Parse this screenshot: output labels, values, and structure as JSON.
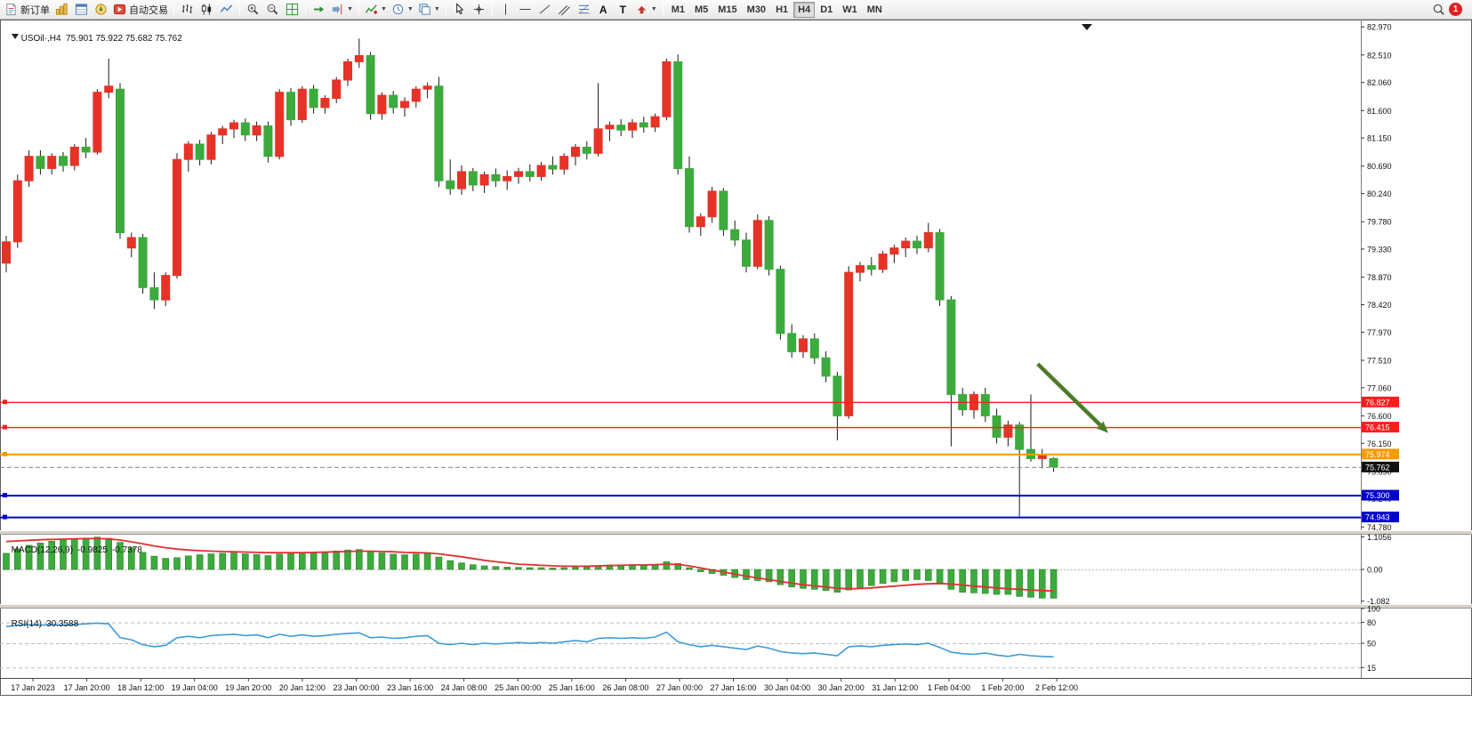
{
  "toolbar": {
    "new_order": "新订单",
    "auto_trading": "自动交易",
    "text_tool": "A",
    "label_tool": "T",
    "timeframes": [
      "M1",
      "M5",
      "M15",
      "M30",
      "H1",
      "H4",
      "D1",
      "W1",
      "MN"
    ],
    "active_timeframe": "H4",
    "notification_count": "1"
  },
  "chart": {
    "title": "USOil·,H4  75.901 75.922 75.682 75.762"
  },
  "indicators": {
    "macd": {
      "name": "MACD(12,26,9)",
      "value_main": "-0.9825",
      "value_signal": "-0.7378",
      "histogram_color": "#3daa3d",
      "signal_color": "#e03030",
      "scale": [
        {
          "text": "1.1056",
          "value": 1.1056
        },
        {
          "text": "0.00",
          "value": 0
        },
        {
          "text": "-1.082",
          "value": -1.082
        }
      ],
      "histogram": [
        0.55,
        0.7,
        0.82,
        0.9,
        0.96,
        1.0,
        1.04,
        1.07,
        1.1,
        1.06,
        0.92,
        0.74,
        0.58,
        0.45,
        0.38,
        0.4,
        0.46,
        0.5,
        0.53,
        0.55,
        0.56,
        0.53,
        0.51,
        0.47,
        0.52,
        0.54,
        0.56,
        0.56,
        0.59,
        0.63,
        0.66,
        0.68,
        0.61,
        0.56,
        0.52,
        0.5,
        0.52,
        0.54,
        0.42,
        0.3,
        0.22,
        0.16,
        0.12,
        0.1,
        0.08,
        0.07,
        0.06,
        0.06,
        0.05,
        0.06,
        0.08,
        0.08,
        0.12,
        0.15,
        0.15,
        0.16,
        0.15,
        0.17,
        0.26,
        0.2,
        0.06,
        -0.08,
        -0.14,
        -0.2,
        -0.28,
        -0.35,
        -0.38,
        -0.42,
        -0.52,
        -0.6,
        -0.65,
        -0.68,
        -0.72,
        -0.78,
        -0.7,
        -0.62,
        -0.55,
        -0.48,
        -0.42,
        -0.38,
        -0.35,
        -0.38,
        -0.5,
        -0.68,
        -0.78,
        -0.8,
        -0.82,
        -0.85,
        -0.85,
        -0.92,
        -0.95,
        -0.98,
        -0.9825
      ],
      "signal": [
        0.95,
        0.97,
        0.99,
        1.01,
        1.02,
        1.03,
        1.04,
        1.05,
        1.05,
        1.04,
        1.0,
        0.94,
        0.87,
        0.8,
        0.74,
        0.69,
        0.66,
        0.64,
        0.62,
        0.61,
        0.6,
        0.59,
        0.58,
        0.57,
        0.57,
        0.57,
        0.57,
        0.58,
        0.59,
        0.6,
        0.61,
        0.62,
        0.62,
        0.61,
        0.6,
        0.58,
        0.57,
        0.56,
        0.53,
        0.48,
        0.43,
        0.37,
        0.31,
        0.26,
        0.22,
        0.18,
        0.16,
        0.14,
        0.12,
        0.11,
        0.11,
        0.11,
        0.12,
        0.13,
        0.14,
        0.15,
        0.15,
        0.16,
        0.18,
        0.17,
        0.12,
        0.05,
        -0.02,
        -0.09,
        -0.16,
        -0.23,
        -0.29,
        -0.35,
        -0.41,
        -0.47,
        -0.52,
        -0.56,
        -0.6,
        -0.64,
        -0.66,
        -0.65,
        -0.63,
        -0.6,
        -0.57,
        -0.54,
        -0.51,
        -0.49,
        -0.48,
        -0.5,
        -0.53,
        -0.57,
        -0.6,
        -0.63,
        -0.66,
        -0.68,
        -0.7,
        -0.72,
        -0.7378
      ]
    },
    "rsi": {
      "name": "RSI(14)",
      "value": "30.3588",
      "line_color": "#3e9ad6",
      "scale": [
        {
          "text": "100",
          "value": 100
        },
        {
          "text": "80",
          "value": 80
        },
        {
          "text": "50",
          "value": 50
        },
        {
          "text": "15",
          "value": 15
        }
      ],
      "levels": [
        80,
        50,
        15
      ],
      "values": [
        74,
        76,
        77,
        76,
        77,
        76,
        77,
        78,
        79,
        78,
        58,
        55,
        48,
        45,
        47,
        58,
        60,
        58,
        61,
        62,
        63,
        61,
        62,
        58,
        63,
        60,
        62,
        60,
        61,
        63,
        64,
        65,
        58,
        59,
        57,
        58,
        60,
        61,
        50,
        48,
        50,
        48,
        50,
        49,
        50,
        51,
        50,
        51,
        50,
        52,
        54,
        52,
        57,
        58,
        57,
        58,
        57,
        59,
        66,
        52,
        48,
        45,
        47,
        45,
        43,
        41,
        46,
        43,
        38,
        36,
        35,
        36,
        34,
        32,
        45,
        46,
        45,
        47,
        48,
        49,
        48,
        50,
        44,
        37,
        35,
        34,
        36,
        33,
        31,
        34,
        32,
        31,
        30.36
      ]
    }
  },
  "chart_data": {
    "type": "candlestick",
    "symbol": "USOil",
    "timeframe": "H4",
    "bull_color": "#e73327",
    "bear_color": "#3caa3c",
    "wick_color": "#1a1a1a",
    "price_axis": {
      "ticks": [
        82.97,
        82.51,
        82.06,
        81.6,
        81.15,
        80.69,
        80.24,
        79.78,
        79.33,
        78.87,
        78.42,
        77.97,
        77.51,
        77.06,
        76.6,
        76.15,
        75.69,
        75.24,
        74.78
      ]
    },
    "levels": [
      {
        "label": "76.827",
        "price": 76.827,
        "color": "#fe1d1d",
        "box": "#fe1d1d",
        "width": 1.4,
        "style": "solid"
      },
      {
        "label": "76.415",
        "price": 76.415,
        "color": "#fe1d1d",
        "box": "#fe1d1d",
        "width": 1.4,
        "style": "solid"
      },
      {
        "label": "75.974",
        "price": 75.974,
        "color": "#f59b00",
        "box": "#f59b00",
        "width": 2,
        "style": "solid"
      },
      {
        "label": "75.762",
        "price": 75.762,
        "color": "#888888",
        "box": "#111111",
        "width": 1,
        "style": "dashed",
        "handle": false
      },
      {
        "label": "75.300",
        "price": 75.3,
        "color": "#0000cd",
        "box": "#0000cd",
        "width": 2,
        "style": "solid"
      },
      {
        "label": "74.943",
        "price": 74.943,
        "color": "#0000cd",
        "box": "#0000cd",
        "width": 2,
        "style": "solid"
      }
    ],
    "annotation_arrow": {
      "from_x_index": 90.6,
      "from_price": 77.45,
      "to_x_index": 96.8,
      "to_price": 76.32,
      "color": "#4e7b28"
    },
    "ohlc": [
      [
        79.1,
        79.55,
        78.95,
        79.45
      ],
      [
        79.45,
        80.55,
        79.35,
        80.45
      ],
      [
        80.45,
        80.95,
        80.35,
        80.85
      ],
      [
        80.85,
        80.95,
        80.55,
        80.65
      ],
      [
        80.65,
        80.9,
        80.55,
        80.85
      ],
      [
        80.85,
        80.92,
        80.6,
        80.7
      ],
      [
        80.7,
        81.05,
        80.62,
        81.0
      ],
      [
        81.0,
        81.15,
        80.82,
        80.92
      ],
      [
        80.92,
        81.95,
        80.88,
        81.9
      ],
      [
        81.9,
        82.45,
        81.8,
        82.0
      ],
      [
        81.95,
        82.05,
        79.5,
        79.6
      ],
      [
        79.35,
        79.6,
        79.2,
        79.52
      ],
      [
        79.52,
        79.58,
        78.6,
        78.7
      ],
      [
        78.7,
        78.95,
        78.35,
        78.5
      ],
      [
        78.5,
        78.95,
        78.4,
        78.9
      ],
      [
        78.9,
        80.9,
        78.85,
        80.8
      ],
      [
        80.8,
        81.1,
        80.6,
        81.05
      ],
      [
        81.05,
        81.12,
        80.7,
        80.8
      ],
      [
        80.8,
        81.25,
        80.72,
        81.2
      ],
      [
        81.2,
        81.35,
        81.05,
        81.3
      ],
      [
        81.3,
        81.45,
        81.15,
        81.4
      ],
      [
        81.4,
        81.47,
        81.1,
        81.2
      ],
      [
        81.2,
        81.42,
        81.1,
        81.35
      ],
      [
        81.35,
        81.42,
        80.75,
        80.85
      ],
      [
        80.85,
        81.95,
        80.8,
        81.9
      ],
      [
        81.9,
        81.97,
        81.35,
        81.45
      ],
      [
        81.45,
        82.0,
        81.4,
        81.95
      ],
      [
        81.95,
        82.02,
        81.55,
        81.65
      ],
      [
        81.65,
        81.85,
        81.55,
        81.8
      ],
      [
        81.8,
        82.15,
        81.72,
        82.1
      ],
      [
        82.1,
        82.45,
        82.0,
        82.4
      ],
      [
        82.4,
        82.78,
        82.3,
        82.5
      ],
      [
        82.5,
        82.56,
        81.45,
        81.55
      ],
      [
        81.55,
        81.9,
        81.45,
        81.85
      ],
      [
        81.85,
        81.92,
        81.55,
        81.65
      ],
      [
        81.65,
        81.82,
        81.5,
        81.75
      ],
      [
        81.75,
        82.0,
        81.65,
        81.95
      ],
      [
        81.95,
        82.06,
        81.8,
        82.0
      ],
      [
        82.0,
        82.15,
        80.35,
        80.45
      ],
      [
        80.45,
        80.8,
        80.22,
        80.32
      ],
      [
        80.32,
        80.7,
        80.22,
        80.6
      ],
      [
        80.6,
        80.66,
        80.28,
        80.38
      ],
      [
        80.38,
        80.6,
        80.25,
        80.55
      ],
      [
        80.55,
        80.65,
        80.35,
        80.45
      ],
      [
        80.45,
        80.62,
        80.3,
        80.52
      ],
      [
        80.52,
        80.66,
        80.4,
        80.6
      ],
      [
        80.6,
        80.72,
        80.44,
        80.52
      ],
      [
        80.52,
        80.76,
        80.45,
        80.7
      ],
      [
        80.7,
        80.85,
        80.55,
        80.64
      ],
      [
        80.64,
        80.9,
        80.55,
        80.85
      ],
      [
        80.85,
        81.05,
        80.7,
        81.0
      ],
      [
        81.0,
        81.1,
        80.8,
        80.9
      ],
      [
        80.9,
        82.05,
        80.85,
        81.3
      ],
      [
        81.3,
        81.42,
        81.1,
        81.36
      ],
      [
        81.36,
        81.46,
        81.18,
        81.28
      ],
      [
        81.28,
        81.46,
        81.15,
        81.4
      ],
      [
        81.4,
        81.5,
        81.24,
        81.33
      ],
      [
        81.33,
        81.55,
        81.25,
        81.5
      ],
      [
        81.5,
        82.45,
        81.44,
        82.4
      ],
      [
        82.4,
        82.52,
        80.55,
        80.65
      ],
      [
        80.65,
        80.85,
        79.6,
        79.7
      ],
      [
        79.7,
        79.92,
        79.55,
        79.86
      ],
      [
        79.86,
        80.35,
        79.76,
        80.28
      ],
      [
        80.28,
        80.33,
        79.55,
        79.65
      ],
      [
        79.65,
        79.8,
        79.38,
        79.48
      ],
      [
        79.48,
        79.6,
        78.95,
        79.05
      ],
      [
        79.05,
        79.9,
        79.0,
        79.8
      ],
      [
        79.8,
        79.87,
        78.9,
        79.0
      ],
      [
        79.0,
        79.06,
        77.85,
        77.95
      ],
      [
        77.95,
        78.1,
        77.55,
        77.65
      ],
      [
        77.65,
        77.92,
        77.55,
        77.86
      ],
      [
        77.86,
        77.95,
        77.45,
        77.55
      ],
      [
        77.55,
        77.66,
        77.15,
        77.25
      ],
      [
        77.25,
        77.32,
        76.2,
        76.6
      ],
      [
        76.6,
        79.05,
        76.55,
        78.95
      ],
      [
        78.95,
        79.12,
        78.8,
        79.06
      ],
      [
        79.06,
        79.2,
        78.9,
        79.0
      ],
      [
        79.0,
        79.3,
        78.94,
        79.25
      ],
      [
        79.25,
        79.4,
        79.1,
        79.35
      ],
      [
        79.35,
        79.52,
        79.2,
        79.46
      ],
      [
        79.46,
        79.55,
        79.25,
        79.35
      ],
      [
        79.35,
        79.76,
        79.28,
        79.6
      ],
      [
        79.6,
        79.66,
        78.4,
        78.5
      ],
      [
        78.5,
        78.56,
        76.1,
        76.95
      ],
      [
        76.95,
        77.06,
        76.6,
        76.7
      ],
      [
        76.7,
        77.0,
        76.55,
        76.95
      ],
      [
        76.95,
        77.06,
        76.5,
        76.6
      ],
      [
        76.6,
        76.72,
        76.15,
        76.25
      ],
      [
        76.25,
        76.52,
        76.1,
        76.45
      ],
      [
        76.45,
        76.5,
        74.95,
        76.05
      ],
      [
        76.05,
        76.95,
        75.85,
        75.9
      ],
      [
        75.9,
        76.06,
        75.74,
        75.95
      ],
      [
        75.901,
        75.922,
        75.682,
        75.762
      ]
    ],
    "time_labels": [
      "17 Jan 2023",
      "17 Jan 20:00",
      "18 Jan 12:00",
      "19 Jan 04:00",
      "19 Jan 20:00",
      "20 Jan 12:00",
      "23 Jan 00:00",
      "23 Jan 16:00",
      "24 Jan 08:00",
      "25 Jan 00:00",
      "25 Jan 16:00",
      "26 Jan 08:00",
      "27 Jan 00:00",
      "27 Jan 16:00",
      "30 Jan 04:00",
      "30 Jan 20:00",
      "31 Jan 12:00",
      "1 Feb 04:00",
      "1 Feb 20:00",
      "2 Feb 12:00"
    ]
  }
}
